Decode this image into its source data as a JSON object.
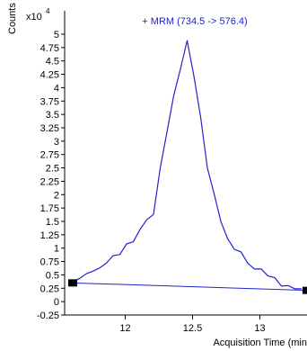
{
  "chart_data": {
    "type": "line",
    "title": "+ MRM (734.5 -> 576.4)",
    "xlabel": "Acquisition Time (min",
    "ylabel": "Counts",
    "y_multiplier": "x10",
    "y_exponent": "4",
    "xlim": [
      11.55,
      13.35
    ],
    "ylim": [
      -0.25,
      5.0
    ],
    "x_ticks": [
      {
        "value": 12,
        "label": "12"
      },
      {
        "value": 12.5,
        "label": "12.5"
      },
      {
        "value": 13,
        "label": "13"
      }
    ],
    "y_ticks": [
      {
        "value": 5,
        "label": "5"
      },
      {
        "value": 4.75,
        "label": "4.75"
      },
      {
        "value": 4.5,
        "label": "4.5"
      },
      {
        "value": 4.25,
        "label": "4.25"
      },
      {
        "value": 4,
        "label": "4"
      },
      {
        "value": 3.75,
        "label": "3.75"
      },
      {
        "value": 3.5,
        "label": "3.5"
      },
      {
        "value": 3.25,
        "label": "3.25"
      },
      {
        "value": 3,
        "label": "3"
      },
      {
        "value": 2.75,
        "label": "2.75"
      },
      {
        "value": 2.5,
        "label": "2.5"
      },
      {
        "value": 2.25,
        "label": "2.25"
      },
      {
        "value": 2,
        "label": "2"
      },
      {
        "value": 1.75,
        "label": "1.75"
      },
      {
        "value": 1.5,
        "label": "1.5"
      },
      {
        "value": 1.25,
        "label": "1.25"
      },
      {
        "value": 1,
        "label": "1"
      },
      {
        "value": 0.75,
        "label": "0.75"
      },
      {
        "value": 0.5,
        "label": "0.5"
      },
      {
        "value": 0.25,
        "label": "0.25"
      },
      {
        "value": 0,
        "label": "0"
      },
      {
        "value": -0.25,
        "label": "-0.25"
      }
    ],
    "series": [
      {
        "color": "#2222cc",
        "x": [
          11.61,
          11.66,
          11.71,
          11.76,
          11.81,
          11.86,
          11.91,
          11.96,
          12.01,
          12.06,
          12.11,
          12.16,
          12.21,
          12.26,
          12.31,
          12.36,
          12.41,
          12.46,
          12.51,
          12.56,
          12.61,
          12.66,
          12.71,
          12.76,
          12.81,
          12.86,
          12.91,
          12.96,
          13.01,
          13.06,
          13.11,
          13.16,
          13.21,
          13.26,
          13.31
        ],
        "y": [
          0.38,
          0.43,
          0.52,
          0.57,
          0.63,
          0.72,
          0.86,
          0.88,
          1.08,
          1.12,
          1.35,
          1.53,
          1.63,
          2.5,
          3.17,
          3.85,
          4.35,
          4.88,
          4.22,
          3.45,
          2.5,
          2.02,
          1.5,
          1.18,
          0.98,
          0.93,
          0.72,
          0.61,
          0.61,
          0.48,
          0.45,
          0.29,
          0.3,
          0.24,
          0.24
        ]
      }
    ],
    "baseline": {
      "color": "#2222cc",
      "x": [
        11.61,
        13.35
      ],
      "y": [
        0.35,
        0.21
      ]
    },
    "markers": [
      {
        "x": 11.61,
        "y": 0.35,
        "color": "#000000"
      },
      {
        "x": 13.35,
        "y": 0.21,
        "color": "#000000"
      }
    ],
    "title_color": "#2222cc",
    "grid": false,
    "legend": "none"
  }
}
